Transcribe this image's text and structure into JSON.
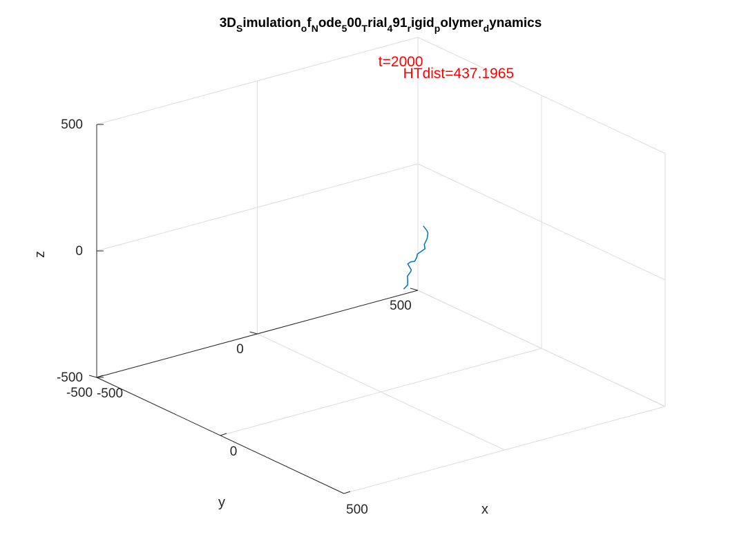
{
  "chart_data": {
    "type": "line",
    "title_parts": [
      {
        "text": "3D",
        "sub": false
      },
      {
        "text": "S",
        "sub": true
      },
      {
        "text": "imulation",
        "sub": false
      },
      {
        "text": "o",
        "sub": true
      },
      {
        "text": "f",
        "sub": false
      },
      {
        "text": "N",
        "sub": true
      },
      {
        "text": "ode",
        "sub": false
      },
      {
        "text": "5",
        "sub": true
      },
      {
        "text": "00",
        "sub": false
      },
      {
        "text": "T",
        "sub": true
      },
      {
        "text": "rial",
        "sub": false
      },
      {
        "text": "4",
        "sub": true
      },
      {
        "text": "91",
        "sub": false
      },
      {
        "text": "r",
        "sub": true
      },
      {
        "text": "igid",
        "sub": false
      },
      {
        "text": "p",
        "sub": true
      },
      {
        "text": "olymer",
        "sub": false
      },
      {
        "text": "d",
        "sub": true
      },
      {
        "text": "ynamics",
        "sub": false
      }
    ],
    "xlabel": "x",
    "ylabel": "y",
    "zlabel": "z",
    "xlim": [
      -500,
      500
    ],
    "ylim": [
      -500,
      500
    ],
    "zlim": [
      -500,
      500
    ],
    "xticks": [
      -500,
      0,
      500
    ],
    "yticks": [
      -500,
      0,
      500
    ],
    "zticks": [
      -500,
      0,
      500
    ],
    "grid": true,
    "annotations": [
      {
        "text": "t=2000",
        "x": -400,
        "y": 300,
        "z": 500
      },
      {
        "text": "HTdist=437.1965",
        "x": -300,
        "y": 300,
        "z": 500
      }
    ],
    "series": [
      {
        "x": [
          -86,
          -60,
          -45,
          -25,
          -21,
          -15,
          -19,
          -6,
          4,
          8,
          -2,
          16,
          26,
          33,
          46,
          56,
          62
        ],
        "y": [
          199,
          189,
          181,
          163,
          151,
          149,
          128,
          116,
          102,
          87,
          85,
          82,
          73,
          57,
          48,
          40,
          24
        ],
        "z": [
          47,
          46,
          45,
          38,
          21,
          8,
          -8,
          -11,
          -17,
          -12,
          -24,
          -38,
          -37,
          -47,
          -56,
          -65,
          -72
        ]
      }
    ]
  }
}
